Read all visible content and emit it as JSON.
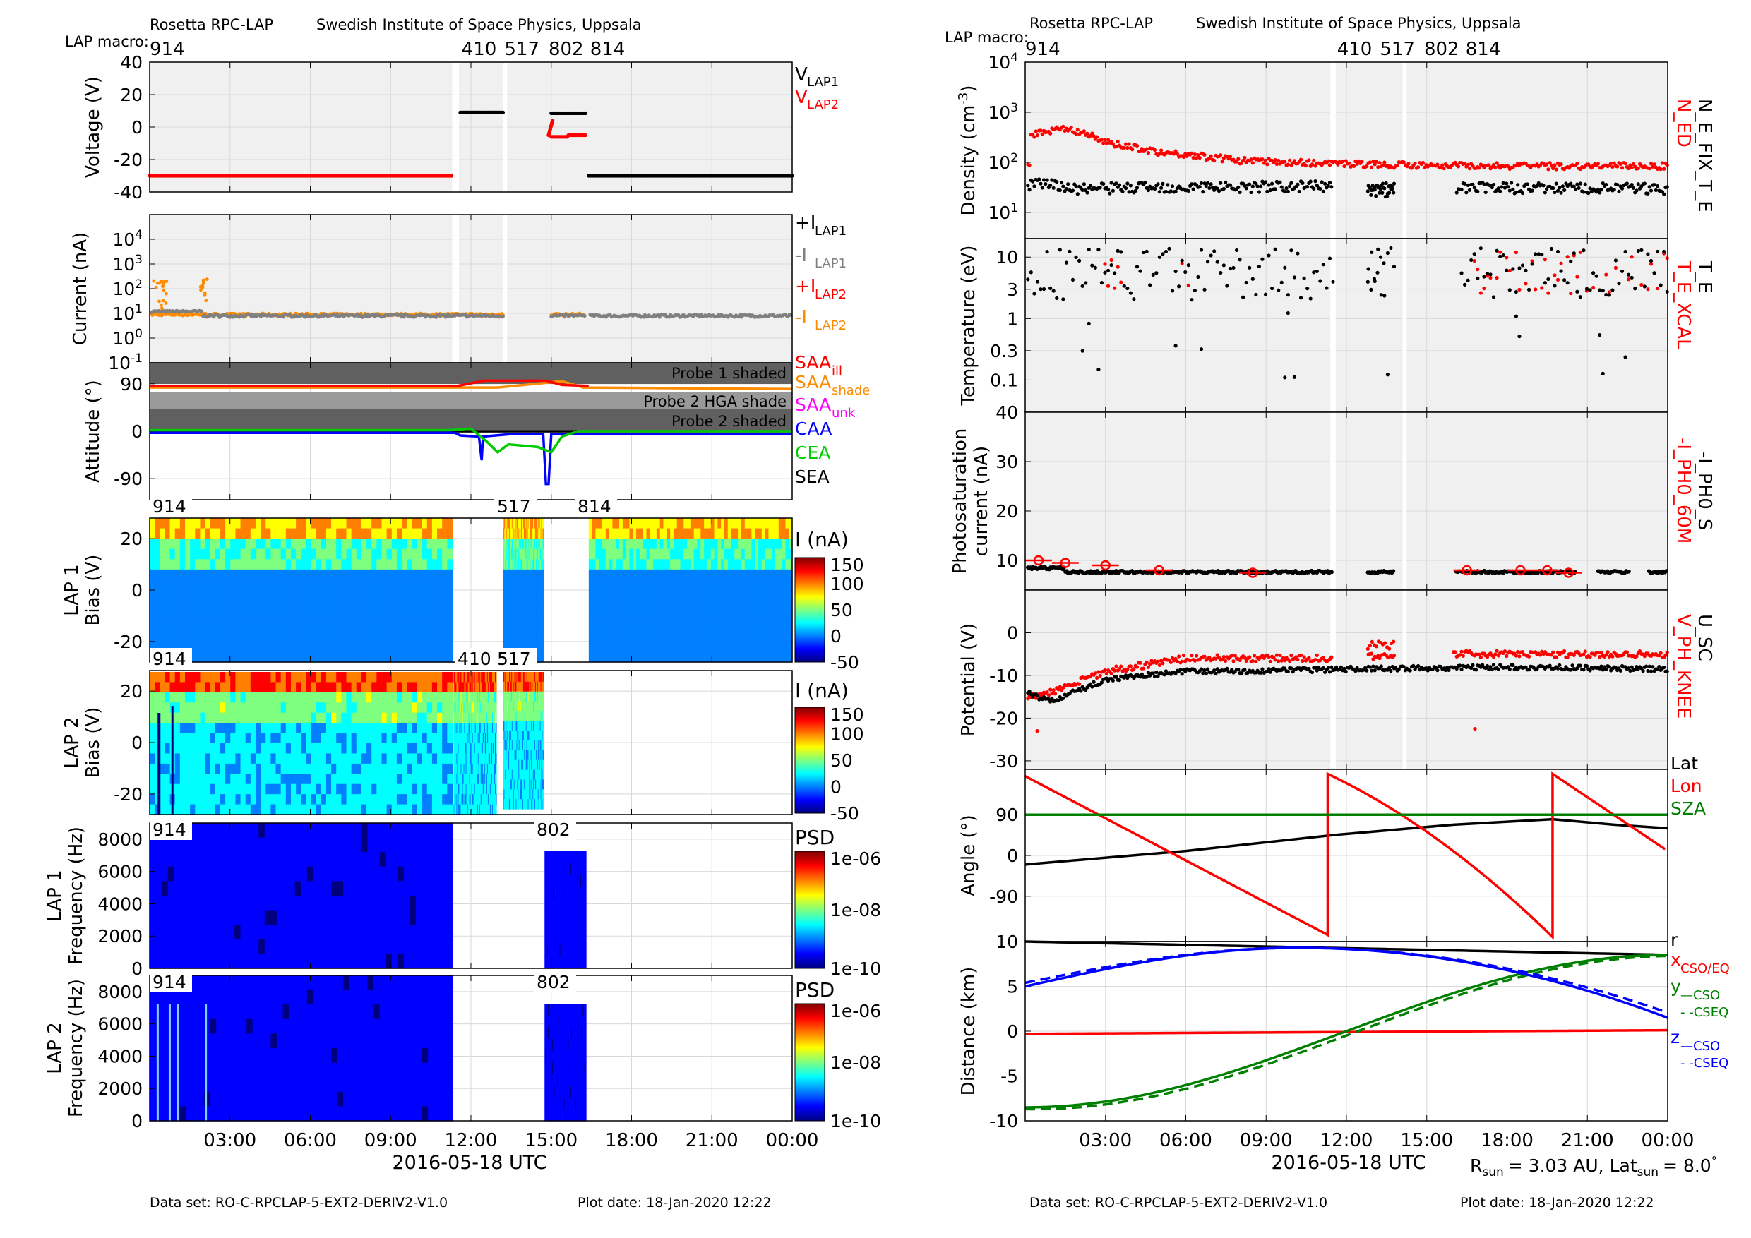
{
  "left": {
    "header": {
      "instrument": "Rosetta RPC-LAP",
      "institute": "Swedish Institute of Space Physics, Uppsala",
      "macro_label": "LAP macro:",
      "macros": [
        {
          "t": 0,
          "label": "914"
        },
        {
          "t": 11.65,
          "label": "410"
        },
        {
          "t": 13.25,
          "label": "517"
        },
        {
          "t": 14.9,
          "label": "802"
        },
        {
          "t": 16.45,
          "label": "814"
        }
      ]
    },
    "xlabel": "2016-05-18 UTC",
    "footer_dataset": "Data set: RO-C-RPCLAP-5-EXT2-DERIV2-V1.0",
    "footer_plotdate": "Plot date: 18-Jan-2020 12:22"
  },
  "right": {
    "header": {
      "instrument": "Rosetta RPC-LAP",
      "institute": "Swedish Institute of Space Physics, Uppsala",
      "macro_label": "LAP macro:",
      "macros": [
        {
          "t": 0,
          "label": "914"
        },
        {
          "t": 11.65,
          "label": "410"
        },
        {
          "t": 13.25,
          "label": "517"
        },
        {
          "t": 14.9,
          "label": "802"
        },
        {
          "t": 16.45,
          "label": "814"
        }
      ]
    },
    "xlabel": "2016-05-18 UTC",
    "rsun_label": "R",
    "rsun_sub": "sun",
    "rsun_value": "= 3.03 AU, Lat",
    "latsun_sub": "sun",
    "latsun_value": "= 8.0",
    "footer_dataset": "Data set: RO-C-RPCLAP-5-EXT2-DERIV2-V1.0",
    "footer_plotdate": "Plot date: 18-Jan-2020 12:22"
  },
  "colors": {
    "black": "#000000",
    "red": "#ff0000",
    "gray": "#808080",
    "orange": "#ff8c00",
    "blue": "#0000ff",
    "green": "#00cc00",
    "darkgreen": "#008000",
    "magenta": "#ff00ff",
    "panel_bg": "#f0f0f0",
    "shade": "#606060"
  },
  "chart_data": [
    {
      "id": "voltage",
      "type": "scatter",
      "ylabel": "Voltage (V)",
      "ylim": [
        -40,
        40
      ],
      "yticks": [
        "40",
        "20",
        "0",
        "-20",
        "-40"
      ],
      "xlim": [
        0,
        24
      ],
      "legend": [
        "V_LAP1",
        "V_LAP2"
      ],
      "series": [
        {
          "name": "V_LAP2",
          "color": "red",
          "segments": [
            [
              0,
              11.3,
              -30
            ]
          ]
        },
        {
          "name": "V_LAP1",
          "color": "black",
          "segments": [
            [
              11.6,
              13.2,
              9
            ],
            [
              15,
              16.3,
              8.5
            ],
            [
              16.4,
              24,
              -30
            ]
          ]
        },
        {
          "name": "V_LAP2",
          "color": "red",
          "segments": [
            [
              15.0,
              16.3,
              -5
            ]
          ]
        }
      ]
    },
    {
      "id": "current",
      "type": "scatter",
      "ylabel": "Current (nA)",
      "yscale": "log",
      "ylim": [
        0.1,
        100000
      ],
      "yticks": [
        "10^4",
        "10^3",
        "10^2",
        "10^1",
        "10^0",
        "10^-1"
      ],
      "legend": [
        "+I_LAP1",
        "-I_LAP1",
        "+I_LAP2",
        "-I_LAP2"
      ],
      "series": [
        {
          "name": "-I_LAP1",
          "color": "gray",
          "level": 8
        },
        {
          "name": "-I_LAP2",
          "color": "orange",
          "level": 9
        }
      ]
    },
    {
      "id": "attitude",
      "type": "line",
      "ylabel": "Attitude (°)",
      "ylim": [
        -130,
        130
      ],
      "yticks": [
        "90",
        "0",
        "-90"
      ],
      "shade_labels": [
        "Probe 1 shaded",
        "Probe 2 HGA shade",
        "Probe 2 shaded"
      ],
      "legend": [
        "SAA_ill",
        "SAA_shade",
        "SAA_unk",
        "CAA",
        "CEA",
        "SEA"
      ],
      "series": [
        {
          "name": "SAA",
          "color": "red",
          "level": 88
        },
        {
          "name": "SAA_shade",
          "color": "orange",
          "level": 83
        },
        {
          "name": "CAA",
          "color": "blue",
          "level": -5
        },
        {
          "name": "CEA",
          "color": "green",
          "level": 2
        },
        {
          "name": "SEA",
          "color": "black",
          "level": 0
        }
      ]
    },
    {
      "id": "lap1_sweep",
      "type": "heatmap",
      "ylabel": "LAP 1 Bias (V)",
      "yticks": [
        "20",
        "0",
        "-20"
      ],
      "ylim": [
        -28,
        28
      ],
      "colorbar_label": "I (nA)",
      "colorbar_ticks": [
        "150",
        "100",
        "50",
        "0",
        "-50"
      ],
      "labels": [
        "914",
        "517",
        "814"
      ]
    },
    {
      "id": "lap2_sweep",
      "type": "heatmap",
      "ylabel": "LAP 2 Bias (V)",
      "yticks": [
        "20",
        "0",
        "-20"
      ],
      "ylim": [
        -28,
        28
      ],
      "colorbar_label": "I (nA)",
      "colorbar_ticks": [
        "150",
        "100",
        "50",
        "0",
        "-50"
      ],
      "labels": [
        "914",
        "410",
        "517"
      ]
    },
    {
      "id": "lap1_psd",
      "type": "heatmap",
      "ylabel": "LAP 1 Frequency (Hz)",
      "yticks": [
        "8000",
        "6000",
        "4000",
        "2000",
        "0"
      ],
      "ylim": [
        0,
        9000
      ],
      "colorbar_label": "PSD",
      "colorbar_ticks": [
        "1e-06",
        "1e-08",
        "1e-10"
      ],
      "labels": [
        "914",
        "802"
      ]
    },
    {
      "id": "lap2_psd",
      "type": "heatmap",
      "ylabel": "LAP 2 Frequency (Hz)",
      "yticks": [
        "8000",
        "6000",
        "4000",
        "2000",
        "0"
      ],
      "ylim": [
        0,
        9000
      ],
      "colorbar_label": "PSD",
      "colorbar_ticks": [
        "1e-06",
        "1e-08",
        "1e-10"
      ],
      "labels": [
        "914",
        "802"
      ],
      "xticks": [
        "03:00",
        "06:00",
        "09:00",
        "12:00",
        "15:00",
        "18:00",
        "21:00",
        "00:00"
      ]
    },
    {
      "id": "density",
      "type": "scatter",
      "ylabel": "Density (cm^-3)",
      "yscale": "log",
      "ylim": [
        3,
        10000
      ],
      "yticks": [
        "10^4",
        "10^3",
        "10^2",
        "10^1"
      ],
      "legend": [
        "N_ED",
        "N_E_FIX_T_E"
      ],
      "series": [
        {
          "name": "N_ED",
          "color": "red",
          "points": [
            [
              0.2,
              350
            ],
            [
              1.5,
              500
            ],
            [
              3,
              250
            ],
            [
              5,
              160
            ],
            [
              8,
              110
            ],
            [
              10,
              100
            ],
            [
              14,
              90
            ],
            [
              18,
              85
            ],
            [
              24,
              85
            ]
          ]
        },
        {
          "name": "N_E_FIX_T_E",
          "color": "black",
          "points": [
            [
              0.2,
              40
            ],
            [
              2,
              30
            ],
            [
              4,
              32
            ],
            [
              8,
              33
            ],
            [
              11.5,
              34
            ],
            [
              14,
              30
            ],
            [
              16,
              32
            ],
            [
              24,
              30
            ]
          ]
        }
      ]
    },
    {
      "id": "temperature",
      "type": "scatter",
      "ylabel": "Temperature (eV)",
      "yscale": "log",
      "ylim": [
        0.03,
        20
      ],
      "yticks": [
        "10",
        "3",
        "1",
        "0.3",
        "0.1"
      ],
      "legend": [
        "T_E_XCAL",
        "T_E"
      ],
      "series": [
        {
          "name": "T_E",
          "color": "black",
          "level": 5
        },
        {
          "name": "T_E_XCAL",
          "color": "red",
          "level": 5
        }
      ]
    },
    {
      "id": "photosat",
      "type": "scatter",
      "ylabel": "Photosaturation current (nA)",
      "ylim": [
        10,
        40
      ],
      "yticks": [
        "40",
        "30",
        "20",
        "10"
      ],
      "legend": [
        "-I_PH0_60M",
        "-I_PH0_S"
      ],
      "series": [
        {
          "name": "-I_PH0_S",
          "color": "black",
          "level": 7.5
        },
        {
          "name": "-I_PH0_60M",
          "color": "red",
          "points": [
            [
              0.5,
              10
            ],
            [
              1.5,
              9.5
            ],
            [
              3,
              9
            ],
            [
              5,
              8
            ],
            [
              8.5,
              7.5
            ],
            [
              16.5,
              8
            ],
            [
              18.5,
              8
            ],
            [
              19.5,
              8
            ],
            [
              20.3,
              7.5
            ]
          ]
        }
      ]
    },
    {
      "id": "potential",
      "type": "scatter",
      "ylabel": "Potential (V)",
      "ylim": [
        -32,
        10
      ],
      "yticks": [
        "0",
        "-10",
        "-20",
        "-30"
      ],
      "legend": [
        "V_PH_KNEE",
        "U_SC"
      ],
      "series": [
        {
          "name": "U_SC",
          "color": "black",
          "points": [
            [
              0,
              -14
            ],
            [
              1,
              -16
            ],
            [
              3,
              -11
            ],
            [
              6,
              -9
            ],
            [
              9,
              -9
            ],
            [
              12,
              -8.5
            ],
            [
              18,
              -8
            ],
            [
              24,
              -8.5
            ]
          ]
        },
        {
          "name": "V_PH_KNEE",
          "color": "red",
          "points": [
            [
              0,
              -15
            ],
            [
              1,
              -14
            ],
            [
              3,
              -9
            ],
            [
              6,
              -6
            ],
            [
              9,
              -6
            ],
            [
              12,
              -6
            ],
            [
              15,
              -5
            ],
            [
              18,
              -5
            ],
            [
              24,
              -5
            ]
          ]
        }
      ]
    },
    {
      "id": "angle",
      "type": "line",
      "ylabel": "Angle (°)",
      "ylim": [
        -190,
        190
      ],
      "yticks": [
        "90",
        "0",
        "-90"
      ],
      "legend": [
        "Lat",
        "Lon",
        "SZA"
      ],
      "series": [
        {
          "name": "Lat",
          "color": "black",
          "points": [
            [
              0,
              -20
            ],
            [
              6,
              10
            ],
            [
              11.5,
              45
            ],
            [
              16,
              68
            ],
            [
              19.7,
              80
            ],
            [
              22,
              68
            ],
            [
              24,
              60
            ]
          ]
        },
        {
          "name": "Lon",
          "color": "red",
          "points": [
            [
              0,
              175
            ],
            [
              11.3,
              -175
            ],
            [
              11.3,
              180
            ],
            [
              15,
              60
            ],
            [
              18,
              -30
            ],
            [
              19.7,
              -180
            ],
            [
              19.7,
              180
            ],
            [
              21,
              100
            ],
            [
              24,
              0
            ]
          ]
        },
        {
          "name": "SZA",
          "color": "darkgreen",
          "points": [
            [
              0,
              90
            ],
            [
              24,
              90
            ]
          ]
        }
      ]
    },
    {
      "id": "distance",
      "type": "line",
      "ylabel": "Distance (km)",
      "ylim": [
        -10,
        10
      ],
      "yticks": [
        "10",
        "5",
        "0",
        "-5",
        "-10"
      ],
      "legend": [
        "r",
        "x CSO/EQ",
        "y —CSO",
        "- -CSEQ",
        "z —CSO",
        "- -CSEQ"
      ],
      "series": [
        {
          "name": "r",
          "color": "black",
          "points": [
            [
              0,
              10
            ],
            [
              12,
              9.2
            ],
            [
              24,
              8.5
            ]
          ]
        },
        {
          "name": "x CSO/EQ",
          "color": "red",
          "points": [
            [
              0,
              -0.3
            ],
            [
              12,
              0
            ],
            [
              24,
              0.1
            ]
          ]
        },
        {
          "name": "y CSO",
          "color": "darkgreen",
          "points": [
            [
              0,
              -8.5
            ],
            [
              6,
              -4.8
            ],
            [
              12,
              1
            ],
            [
              18,
              6.5
            ],
            [
              24,
              8.5
            ]
          ]
        },
        {
          "name": "z CSO",
          "color": "blue",
          "points": [
            [
              0,
              5
            ],
            [
              5,
              8
            ],
            [
              10,
              9.3
            ],
            [
              14,
              8.5
            ],
            [
              19,
              6
            ],
            [
              24,
              1.5
            ]
          ]
        }
      ],
      "xticks": [
        "03:00",
        "06:00",
        "09:00",
        "12:00",
        "15:00",
        "18:00",
        "21:00",
        "00:00"
      ]
    }
  ]
}
